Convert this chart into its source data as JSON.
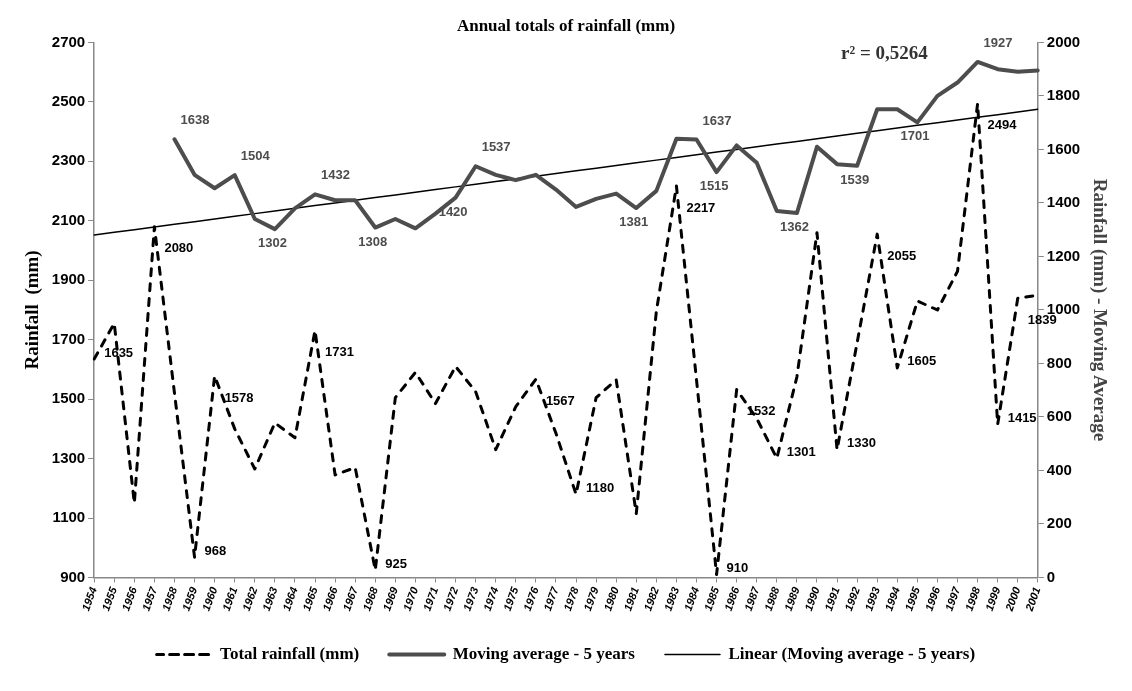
{
  "chart_data": {
    "type": "line",
    "title": "Annual totals of rainfall (mm)",
    "ylabel": "Rainfall  (mm)",
    "y2label": "Rainfall (mm) - Moving Average",
    "annotations": [
      "r² = 0,5264"
    ],
    "categories": [
      "1954",
      "1955",
      "1956",
      "1957",
      "1958",
      "1959",
      "1960",
      "1961",
      "1962",
      "1963",
      "1964",
      "1965",
      "1966",
      "1967",
      "1968",
      "1969",
      "1970",
      "1971",
      "1972",
      "1973",
      "1974",
      "1975",
      "1976",
      "1977",
      "1978",
      "1979",
      "1980",
      "1981",
      "1982",
      "1983",
      "1984",
      "1985",
      "1986",
      "1987",
      "1988",
      "1989",
      "1990",
      "1991",
      "1992",
      "1993",
      "1994",
      "1995",
      "1996",
      "1997",
      "1998",
      "1999",
      "2000",
      "2001"
    ],
    "ylim": [
      900,
      2700
    ],
    "yticks": [
      900,
      1100,
      1300,
      1500,
      1700,
      1900,
      2100,
      2300,
      2500,
      2700
    ],
    "y2lim": [
      0,
      2000
    ],
    "y2ticks": [
      0,
      200,
      400,
      600,
      800,
      1000,
      1200,
      1400,
      1600,
      1800,
      2000
    ],
    "legend": "bottom",
    "marker": "none",
    "series": [
      {
        "name": "Total rainfall (mm)",
        "color": "#000000",
        "line_style": "dashed",
        "values": [
          1635,
          1755,
          1150,
          2080,
          1520,
          968,
          1578,
          1400,
          1265,
          1420,
          1370,
          1731,
          1245,
          1270,
          925,
          1505,
          1590,
          1485,
          1610,
          1525,
          1330,
          1475,
          1567,
          1385,
          1180,
          1505,
          1565,
          1115,
          1795,
          2217,
          1565,
          910,
          1532,
          1435,
          1301,
          1575,
          2060,
          1330,
          1690,
          2055,
          1605,
          1830,
          1800,
          1930,
          2494,
          1415,
          1839,
          1850
        ],
        "value_labels": [
          "1635",
          null,
          null,
          "2080",
          null,
          "968",
          "1578",
          null,
          null,
          null,
          null,
          "1731",
          null,
          null,
          "925",
          null,
          null,
          null,
          null,
          null,
          null,
          null,
          "1567",
          null,
          "1180",
          null,
          null,
          null,
          null,
          "2217",
          null,
          "910",
          "1532",
          null,
          "1301",
          null,
          null,
          "1330",
          null,
          "2055",
          "1605",
          null,
          null,
          null,
          "2494",
          "1415",
          "1839",
          null
        ]
      },
      {
        "name": "Moving average - 5 years",
        "color": "#4d4d4d",
        "line_style": "solid",
        "axis": "y2",
        "values": [
          null,
          null,
          null,
          null,
          1638,
          1505,
          1455,
          1504,
          1340,
          1302,
          1380,
          1432,
          1410,
          1410,
          1308,
          1340,
          1305,
          1360,
          1420,
          1537,
          1505,
          1485,
          1505,
          1450,
          1385,
          1415,
          1435,
          1381,
          1445,
          1640,
          1637,
          1515,
          1615,
          1550,
          1370,
          1362,
          1610,
          1545,
          1539,
          1750,
          1750,
          1701,
          1800,
          1850,
          1927,
          1900,
          1890,
          1895
        ],
        "value_labels": [
          null,
          null,
          null,
          null,
          "1638",
          null,
          null,
          "1504",
          null,
          "1302",
          null,
          "1432",
          null,
          null,
          "1308",
          null,
          null,
          null,
          "1420",
          "1537",
          null,
          null,
          null,
          null,
          null,
          null,
          null,
          "1381",
          null,
          null,
          "1637",
          "1515",
          null,
          null,
          null,
          "1362",
          null,
          null,
          "1539",
          null,
          null,
          "1701",
          null,
          null,
          "1927",
          null,
          null,
          null
        ]
      },
      {
        "name": "Linear (Moving average - 5 years)",
        "color": "#000000",
        "line_style": "solid",
        "axis": "y2",
        "values": [
          1280,
          1290,
          1300,
          1310,
          1320,
          1330,
          1340,
          1350,
          1360,
          1370,
          1380,
          1390,
          1400,
          1410,
          1420,
          1430,
          1440,
          1450,
          1460,
          1470,
          1480,
          1490,
          1500,
          1510,
          1520,
          1530,
          1540,
          1550,
          1560,
          1570,
          1580,
          1590,
          1600,
          1610,
          1620,
          1630,
          1640,
          1650,
          1660,
          1670,
          1680,
          1690,
          1700,
          1710,
          1720,
          1730,
          1740,
          1750
        ]
      }
    ]
  }
}
